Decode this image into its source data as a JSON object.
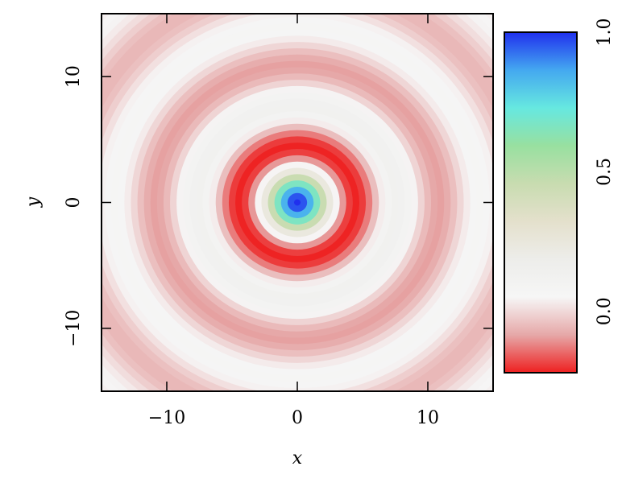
{
  "chart_data": {
    "type": "heatmap",
    "x_label": "x",
    "y_label": "y",
    "xlim": [
      -15,
      15
    ],
    "ylim": [
      -15,
      15
    ],
    "xticks": [
      {
        "value": -10,
        "label": "−10"
      },
      0,
      10
    ],
    "yticks": [
      {
        "value": -10,
        "label": "−10"
      },
      0,
      10
    ],
    "r": [
      0,
      0.5,
      1,
      1.5,
      2,
      2.5,
      3,
      3.5,
      4,
      4.5,
      5,
      5.5,
      6,
      6.5,
      7,
      7.5,
      8,
      8.5,
      9,
      9.5,
      10,
      10.5,
      11,
      11.5,
      12,
      12.5,
      13,
      13.5,
      14,
      14.5,
      15,
      15.5,
      16,
      16.5,
      17,
      17.5,
      18,
      18.5,
      19,
      19.5,
      20,
      20.5,
      21,
      21.5
    ],
    "values": [
      1,
      0.959,
      0.841,
      0.665,
      0.455,
      0.239,
      0.047,
      -0.1,
      -0.189,
      -0.217,
      -0.192,
      -0.128,
      -0.047,
      0.033,
      0.094,
      0.125,
      0.124,
      0.094,
      0.046,
      -0.008,
      -0.054,
      -0.084,
      -0.091,
      -0.076,
      -0.045,
      -0.005,
      0.032,
      0.06,
      0.071,
      0.064,
      0.043,
      0.013,
      -0.018,
      -0.043,
      -0.057,
      -0.056,
      -0.042,
      -0.018,
      0.008,
      0.031,
      0.046,
      0.049,
      0.04,
      0.021
    ],
    "clim": [
      -0.22,
      1.0
    ],
    "cticks": [
      {
        "value": 0,
        "label": "0.0"
      },
      0.5,
      {
        "value": 1,
        "label": "1.0"
      }
    ],
    "colormap": [
      "#ee2020",
      "#e6a8a8",
      "#f6f6f6",
      "#ededea",
      "#e4e0cc",
      "#c8dcb0",
      "#98e0a0",
      "#66e8e0",
      "#44a8f0",
      "#2030ee"
    ]
  }
}
